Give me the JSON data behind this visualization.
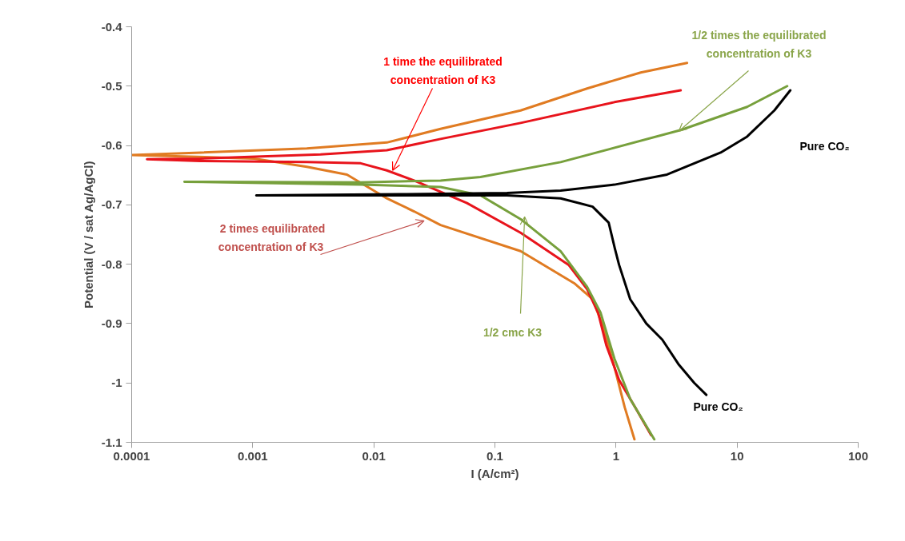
{
  "chart_data": {
    "type": "line",
    "xlabel": "I (A/cm²)",
    "ylabel": "Potential (V / sat Ag/AgCl)",
    "log": "x",
    "xlim": [
      0.0001,
      100
    ],
    "ylim": [
      -1.1,
      -0.4
    ],
    "xticks": [
      0.0001,
      0.001,
      0.01,
      0.1,
      1,
      10,
      100
    ],
    "yticks": [
      -1.1,
      -1,
      -0.9,
      -0.8,
      -0.7,
      -0.6,
      -0.5,
      -0.4
    ],
    "grid": false,
    "marker": "none",
    "line_style": "solid",
    "series": [
      {
        "color": "#e07b22",
        "x": [
          3.86,
          1.6,
          0.577,
          0.163,
          0.0356,
          0.0128,
          0.0028,
          0.00037,
          0.0001,
          0.00103,
          0.0028,
          0.006,
          0.0128,
          0.0215,
          0.0356,
          0.163,
          0.452,
          0.641,
          0.782,
          0.97,
          1.18,
          1.42
        ],
        "values": [
          -0.461,
          -0.477,
          -0.504,
          -0.541,
          -0.572,
          -0.595,
          -0.605,
          -0.612,
          -0.616,
          -0.622,
          -0.636,
          -0.649,
          -0.689,
          -0.711,
          -0.734,
          -0.778,
          -0.832,
          -0.859,
          -0.905,
          -0.973,
          -1.041,
          -1.095
        ]
      },
      {
        "color": "#e8141c",
        "x": [
          3.42,
          0.97,
          0.163,
          0.0356,
          0.0128,
          0.00363,
          0.00037,
          0.000134,
          0.00037,
          0.0028,
          0.0078,
          0.0128,
          0.0215,
          0.0588,
          0.163,
          0.406,
          0.577,
          0.713,
          0.83,
          1.06,
          1.44,
          1.95
        ],
        "values": [
          -0.507,
          -0.527,
          -0.562,
          -0.589,
          -0.608,
          -0.615,
          -0.622,
          -0.623,
          -0.626,
          -0.628,
          -0.63,
          -0.642,
          -0.659,
          -0.697,
          -0.747,
          -0.801,
          -0.842,
          -0.882,
          -0.936,
          -0.995,
          -1.041,
          -1.088
        ]
      },
      {
        "color": "#77a03c",
        "x": [
          25.9,
          12.1,
          3.42,
          0.349,
          0.076,
          0.0356,
          0.0078,
          0.000273,
          0.0078,
          0.0356,
          0.076,
          0.163,
          0.349,
          0.577,
          0.747,
          0.97,
          1.31,
          2.07
        ],
        "values": [
          -0.5,
          -0.535,
          -0.574,
          -0.628,
          -0.653,
          -0.659,
          -0.662,
          -0.661,
          -0.666,
          -0.67,
          -0.684,
          -0.724,
          -0.778,
          -0.838,
          -0.882,
          -0.959,
          -1.027,
          -1.095
        ]
      },
      {
        "color": "#000000",
        "x": [
          27.5,
          20.3,
          12.1,
          7.31,
          2.64,
          0.97,
          0.349,
          0.126,
          0.0166,
          0.00107,
          0.0166,
          0.126,
          0.349,
          0.641,
          0.87,
          0.98,
          1.06,
          1.31,
          1.78,
          2.41,
          3.27,
          4.43,
          5.57
        ],
        "values": [
          -0.507,
          -0.541,
          -0.585,
          -0.612,
          -0.649,
          -0.666,
          -0.676,
          -0.68,
          -0.682,
          -0.684,
          -0.684,
          -0.684,
          -0.689,
          -0.703,
          -0.73,
          -0.774,
          -0.801,
          -0.859,
          -0.9,
          -0.927,
          -0.968,
          -1.0,
          -1.02
        ]
      }
    ],
    "annotations": [
      {
        "text": "1 time the  equilibrated\nconcentration  of K3",
        "x": 0.0143,
        "y": -0.642
      },
      {
        "text": "2 times equilibrated\nconcentration  of K3",
        "x": 0.026,
        "y": -0.727
      },
      {
        "text": "1/2  times the equilibrated\nconcentration  of K3",
        "x": 3.3,
        "y": -0.576
      },
      {
        "text": "1/2 cmc K3",
        "x": 0.176,
        "y": -0.72
      },
      "Pure CO₂",
      "Pure CO₂"
    ]
  }
}
